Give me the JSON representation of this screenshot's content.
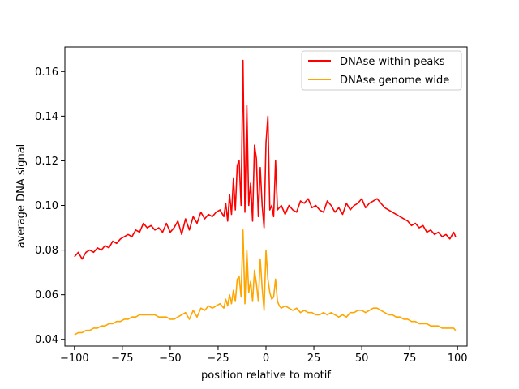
{
  "chart_data": {
    "type": "line",
    "xlabel": "position relative to motif",
    "ylabel": "average DNA signal",
    "xlim": [
      -105,
      105
    ],
    "ylim": [
      0.037,
      0.171
    ],
    "xticks": [
      -100,
      -75,
      -50,
      -25,
      0,
      25,
      50,
      75,
      100
    ],
    "xtick_labels": [
      "−100",
      "−75",
      "−50",
      "−25",
      "0",
      "25",
      "50",
      "75",
      "100"
    ],
    "yticks": [
      0.04,
      0.06,
      0.08,
      0.1,
      0.12,
      0.14,
      0.16
    ],
    "ytick_labels": [
      "0.04",
      "0.06",
      "0.08",
      "0.10",
      "0.12",
      "0.14",
      "0.16"
    ],
    "grid": false,
    "legend_position": "top-right",
    "series": [
      {
        "name": "DNAse within peaks",
        "color": "#ff0000",
        "x": [
          -100,
          -98,
          -96,
          -94,
          -92,
          -90,
          -88,
          -86,
          -84,
          -82,
          -80,
          -78,
          -76,
          -74,
          -72,
          -70,
          -68,
          -66,
          -64,
          -62,
          -60,
          -58,
          -56,
          -54,
          -52,
          -50,
          -48,
          -46,
          -44,
          -42,
          -40,
          -38,
          -36,
          -34,
          -32,
          -30,
          -28,
          -26,
          -24,
          -22,
          -21,
          -20,
          -19,
          -18,
          -17,
          -16,
          -15,
          -14,
          -13,
          -12,
          -11,
          -10,
          -9,
          -8,
          -7,
          -6,
          -5,
          -4,
          -3,
          -2,
          -1,
          0,
          1,
          2,
          3,
          4,
          5,
          6,
          7,
          8,
          10,
          12,
          14,
          16,
          18,
          20,
          22,
          24,
          26,
          28,
          30,
          32,
          34,
          36,
          38,
          40,
          42,
          44,
          46,
          48,
          50,
          52,
          54,
          56,
          58,
          60,
          62,
          64,
          66,
          68,
          70,
          72,
          74,
          76,
          78,
          80,
          82,
          84,
          86,
          88,
          90,
          92,
          94,
          96,
          98,
          99
        ],
        "y": [
          0.077,
          0.079,
          0.076,
          0.079,
          0.08,
          0.079,
          0.081,
          0.08,
          0.082,
          0.081,
          0.084,
          0.083,
          0.085,
          0.086,
          0.087,
          0.086,
          0.089,
          0.088,
          0.092,
          0.09,
          0.091,
          0.089,
          0.09,
          0.088,
          0.092,
          0.088,
          0.09,
          0.093,
          0.087,
          0.094,
          0.089,
          0.095,
          0.092,
          0.097,
          0.094,
          0.096,
          0.095,
          0.097,
          0.098,
          0.095,
          0.101,
          0.093,
          0.105,
          0.096,
          0.112,
          0.098,
          0.118,
          0.12,
          0.1,
          0.165,
          0.097,
          0.145,
          0.1,
          0.11,
          0.093,
          0.127,
          0.121,
          0.095,
          0.117,
          0.1,
          0.09,
          0.128,
          0.14,
          0.098,
          0.1,
          0.095,
          0.12,
          0.098,
          0.099,
          0.1,
          0.096,
          0.1,
          0.098,
          0.097,
          0.102,
          0.101,
          0.103,
          0.099,
          0.1,
          0.098,
          0.097,
          0.102,
          0.1,
          0.097,
          0.099,
          0.096,
          0.101,
          0.098,
          0.1,
          0.101,
          0.103,
          0.099,
          0.101,
          0.102,
          0.103,
          0.101,
          0.099,
          0.098,
          0.097,
          0.096,
          0.095,
          0.094,
          0.093,
          0.091,
          0.092,
          0.09,
          0.091,
          0.088,
          0.089,
          0.087,
          0.088,
          0.086,
          0.087,
          0.085,
          0.088,
          0.086
        ]
      },
      {
        "name": "DNAse genome wide",
        "color": "#ffa500",
        "x": [
          -100,
          -98,
          -96,
          -94,
          -92,
          -90,
          -88,
          -86,
          -84,
          -82,
          -80,
          -78,
          -76,
          -74,
          -72,
          -70,
          -68,
          -66,
          -64,
          -62,
          -60,
          -58,
          -56,
          -54,
          -52,
          -50,
          -48,
          -46,
          -44,
          -42,
          -40,
          -38,
          -36,
          -34,
          -32,
          -30,
          -28,
          -26,
          -24,
          -22,
          -21,
          -20,
          -19,
          -18,
          -17,
          -16,
          -15,
          -14,
          -13,
          -12,
          -11,
          -10,
          -9,
          -8,
          -7,
          -6,
          -5,
          -4,
          -3,
          -2,
          -1,
          0,
          1,
          2,
          3,
          4,
          5,
          6,
          7,
          8,
          10,
          12,
          14,
          16,
          18,
          20,
          22,
          24,
          26,
          28,
          30,
          32,
          34,
          36,
          38,
          40,
          42,
          44,
          46,
          48,
          50,
          52,
          54,
          56,
          58,
          60,
          62,
          64,
          66,
          68,
          70,
          72,
          74,
          76,
          78,
          80,
          82,
          84,
          86,
          88,
          90,
          92,
          94,
          96,
          98,
          99
        ],
        "y": [
          0.042,
          0.043,
          0.043,
          0.044,
          0.044,
          0.045,
          0.045,
          0.046,
          0.046,
          0.047,
          0.047,
          0.048,
          0.048,
          0.049,
          0.049,
          0.05,
          0.05,
          0.051,
          0.051,
          0.051,
          0.051,
          0.051,
          0.05,
          0.05,
          0.05,
          0.049,
          0.049,
          0.05,
          0.051,
          0.052,
          0.049,
          0.053,
          0.05,
          0.054,
          0.053,
          0.055,
          0.054,
          0.055,
          0.056,
          0.054,
          0.058,
          0.055,
          0.06,
          0.056,
          0.062,
          0.057,
          0.067,
          0.068,
          0.059,
          0.089,
          0.056,
          0.08,
          0.061,
          0.066,
          0.057,
          0.071,
          0.065,
          0.057,
          0.076,
          0.063,
          0.053,
          0.08,
          0.067,
          0.061,
          0.058,
          0.059,
          0.067,
          0.057,
          0.055,
          0.054,
          0.055,
          0.054,
          0.053,
          0.054,
          0.052,
          0.053,
          0.052,
          0.052,
          0.051,
          0.051,
          0.052,
          0.051,
          0.052,
          0.051,
          0.05,
          0.051,
          0.05,
          0.052,
          0.052,
          0.053,
          0.053,
          0.052,
          0.053,
          0.054,
          0.054,
          0.053,
          0.052,
          0.051,
          0.051,
          0.05,
          0.05,
          0.049,
          0.049,
          0.048,
          0.048,
          0.047,
          0.047,
          0.047,
          0.046,
          0.046,
          0.046,
          0.045,
          0.045,
          0.045,
          0.045,
          0.044
        ]
      }
    ]
  }
}
